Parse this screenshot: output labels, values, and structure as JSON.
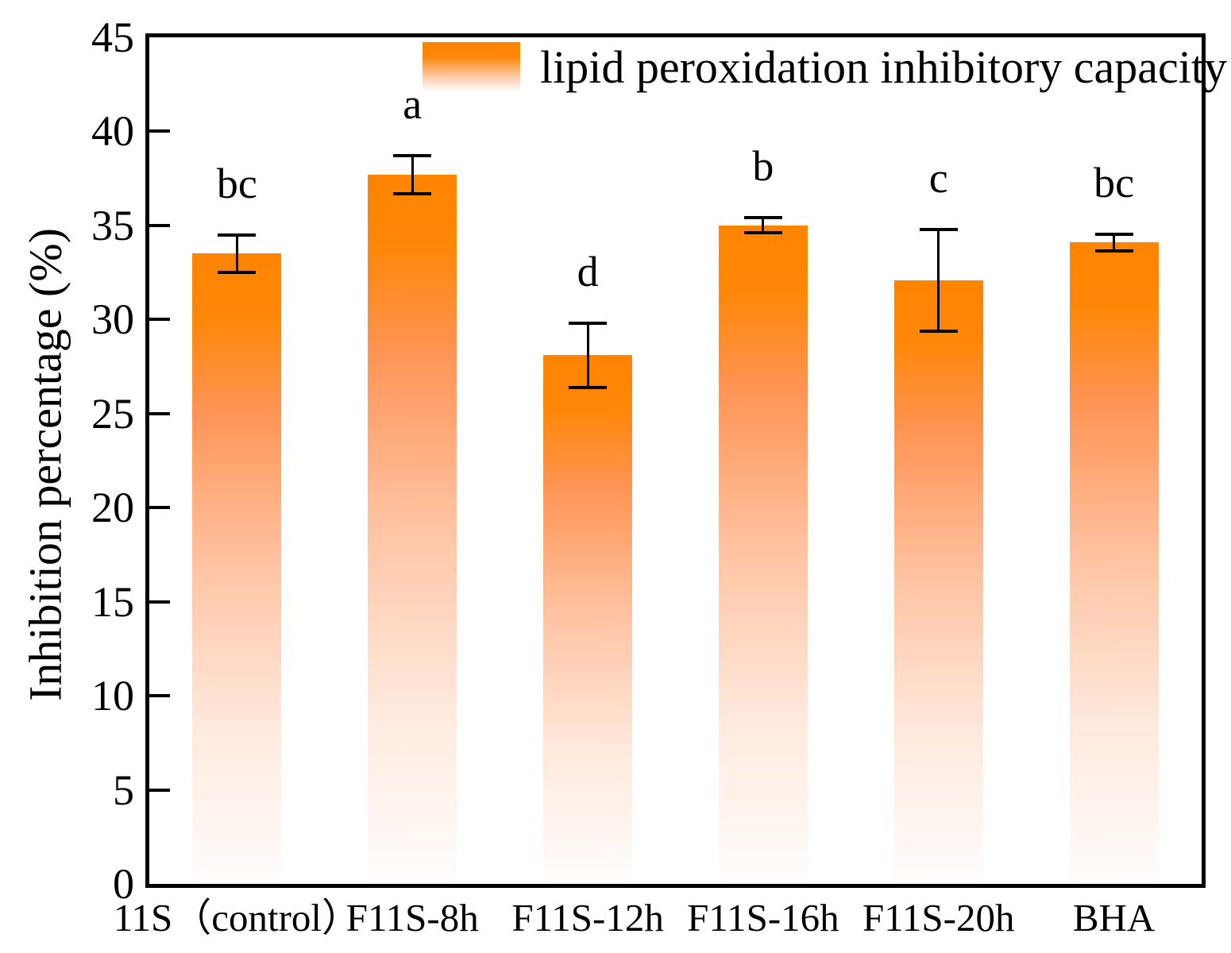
{
  "chart_data": {
    "type": "bar",
    "title": "",
    "categories": [
      "11S（control）",
      "F11S-8h",
      "F11S-12h",
      "F11S-16h",
      "F11S-20h",
      "BHA"
    ],
    "values": [
      33.5,
      37.7,
      28.1,
      35.0,
      32.1,
      34.1
    ],
    "errors": [
      1.0,
      1.0,
      1.7,
      0.4,
      2.7,
      0.45
    ],
    "sig_letters": [
      "bc",
      "a",
      "d",
      "b",
      "c",
      "bc"
    ],
    "xlabel": "",
    "ylabel": "Inhibition percentage (%)",
    "ylim": [
      0,
      45
    ],
    "ytick_step": 5,
    "grid": false,
    "legend": {
      "label": "lipid peroxidation inhibitory capacity",
      "position": "top-center-inside"
    },
    "colors": {
      "bar_top": "#ff8400",
      "bar_bottom": "#ffffff",
      "axis": "#000000",
      "error_bar": "#000000",
      "text": "#000000"
    }
  }
}
